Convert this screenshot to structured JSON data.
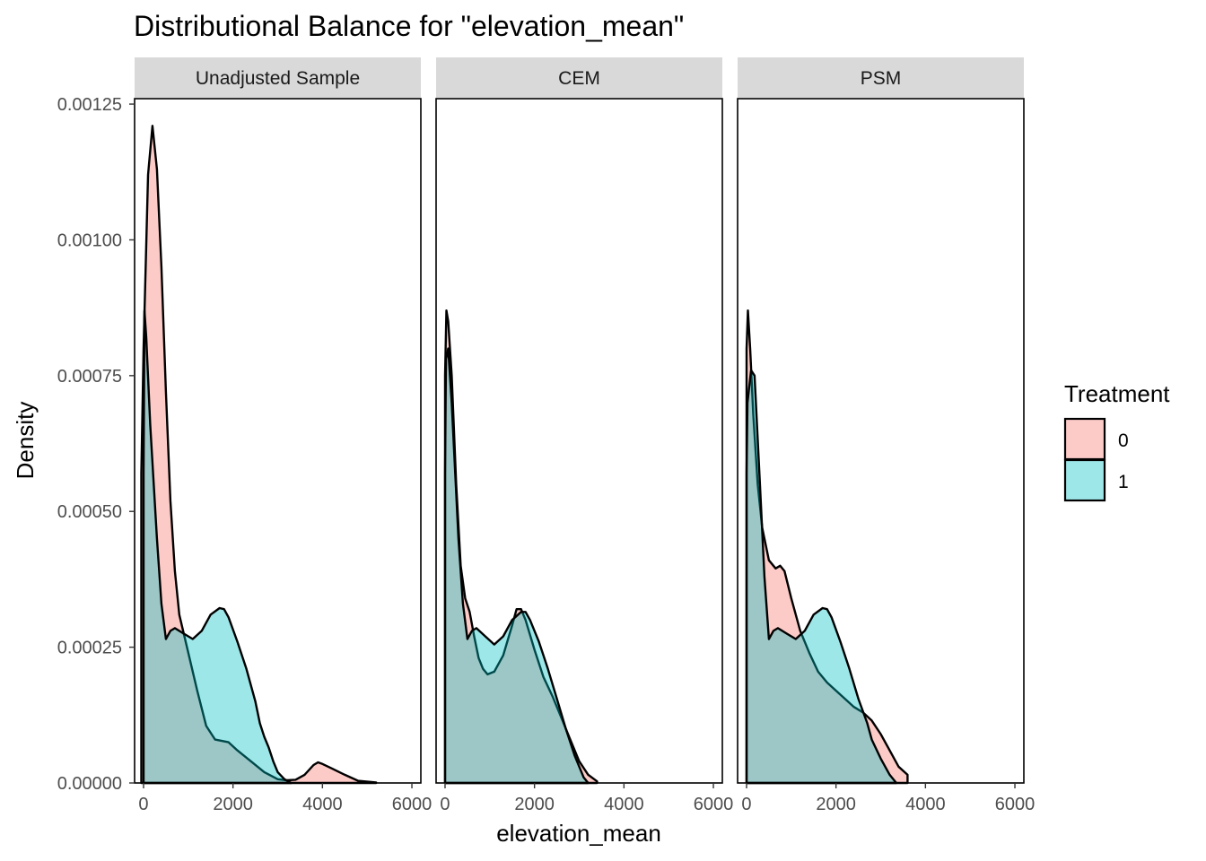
{
  "chart_data": {
    "type": "area",
    "title": "Distributional Balance for \"elevation_mean\"",
    "xlabel": "elevation_mean",
    "ylabel": "Density",
    "xlim": [
      -200,
      6200
    ],
    "ylim": [
      0,
      0.00126
    ],
    "x_ticks": [
      0,
      2000,
      4000,
      6000
    ],
    "x_tick_labels": [
      "0",
      "2000",
      "4000",
      "6000"
    ],
    "y_ticks": [
      0,
      0.00025,
      0.0005,
      0.00075,
      0.001,
      0.00125
    ],
    "y_tick_labels": [
      "0.00000",
      "0.00025",
      "0.00050",
      "0.00075",
      "0.00100",
      "0.00125"
    ],
    "grid": false,
    "legend": {
      "title": "Treatment",
      "position": "right",
      "entries": [
        {
          "label": "0",
          "color": "#F8766D"
        },
        {
          "label": "1",
          "color": "#00BFC4"
        }
      ]
    },
    "panels": [
      {
        "title": "Unadjusted Sample",
        "series": [
          {
            "name": "0",
            "color": "#F8766D",
            "points": [
              [
                -50,
                0
              ],
              [
                -50,
                0.00057
              ],
              [
                0,
                0.0008
              ],
              [
                100,
                0.00112
              ],
              [
                200,
                0.00121
              ],
              [
                300,
                0.00113
              ],
              [
                400,
                0.00095
              ],
              [
                500,
                0.00072
              ],
              [
                600,
                0.00052
              ],
              [
                700,
                0.00039
              ],
              [
                800,
                0.00031
              ],
              [
                1000,
                0.00024
              ],
              [
                1200,
                0.00017
              ],
              [
                1400,
                0.000105
              ],
              [
                1600,
                8e-05
              ],
              [
                1900,
                7.5e-05
              ],
              [
                2100,
                6e-05
              ],
              [
                2400,
                4e-05
              ],
              [
                2700,
                2e-05
              ],
              [
                3000,
                7e-06
              ],
              [
                3200,
                5e-06
              ],
              [
                3400,
                6e-06
              ],
              [
                3600,
                1.5e-05
              ],
              [
                3800,
                3.3e-05
              ],
              [
                3900,
                3.8e-05
              ],
              [
                4000,
                3.5e-05
              ],
              [
                4200,
                2.7e-05
              ],
              [
                4500,
                1.5e-05
              ],
              [
                4800,
                4e-06
              ],
              [
                5200,
                1e-06
              ],
              [
                5200,
                0
              ]
            ]
          },
          {
            "name": "1",
            "color": "#00BFC4",
            "points": [
              [
                0,
                0
              ],
              [
                0,
                0.00057
              ],
              [
                20,
                0.00087
              ],
              [
                60,
                0.00082
              ],
              [
                150,
                0.00066
              ],
              [
                300,
                0.00045
              ],
              [
                400,
                0.00033
              ],
              [
                500,
                0.000265
              ],
              [
                600,
                0.00028
              ],
              [
                700,
                0.000285
              ],
              [
                900,
                0.000275
              ],
              [
                1100,
                0.000265
              ],
              [
                1300,
                0.00028
              ],
              [
                1500,
                0.00031
              ],
              [
                1700,
                0.000322
              ],
              [
                1800,
                0.00032
              ],
              [
                1900,
                0.000305
              ],
              [
                2100,
                0.00026
              ],
              [
                2300,
                0.00021
              ],
              [
                2500,
                0.00015
              ],
              [
                2600,
                0.00011
              ],
              [
                2700,
                8.5e-05
              ],
              [
                2800,
                6.5e-05
              ],
              [
                2900,
                4e-05
              ],
              [
                3000,
                2e-05
              ],
              [
                3150,
                7e-06
              ],
              [
                3300,
                0
              ],
              [
                0,
                0
              ]
            ]
          }
        ]
      },
      {
        "title": "CEM",
        "series": [
          {
            "name": "0",
            "color": "#F8766D",
            "points": [
              [
                0,
                0
              ],
              [
                0,
                0.00075
              ],
              [
                30,
                0.00087
              ],
              [
                70,
                0.00085
              ],
              [
                150,
                0.00075
              ],
              [
                250,
                0.00055
              ],
              [
                350,
                0.0004
              ],
              [
                450,
                0.00034
              ],
              [
                550,
                0.000315
              ],
              [
                650,
                0.00027
              ],
              [
                750,
                0.00023
              ],
              [
                850,
                0.00021
              ],
              [
                950,
                0.0002
              ],
              [
                1100,
                0.000205
              ],
              [
                1300,
                0.000235
              ],
              [
                1500,
                0.00029
              ],
              [
                1600,
                0.00032
              ],
              [
                1700,
                0.00032
              ],
              [
                1800,
                0.0003
              ],
              [
                2000,
                0.000245
              ],
              [
                2200,
                0.000195
              ],
              [
                2400,
                0.00016
              ],
              [
                2600,
                0.00012
              ],
              [
                2800,
                8e-05
              ],
              [
                3000,
                4e-05
              ],
              [
                3200,
                1.5e-05
              ],
              [
                3400,
                3e-06
              ],
              [
                3400,
                0
              ]
            ]
          },
          {
            "name": "1",
            "color": "#00BFC4",
            "points": [
              [
                0,
                0
              ],
              [
                0,
                0.00057
              ],
              [
                20,
                0.00078
              ],
              [
                70,
                0.0008
              ],
              [
                150,
                0.0007
              ],
              [
                300,
                0.00045
              ],
              [
                400,
                0.00033
              ],
              [
                500,
                0.000265
              ],
              [
                600,
                0.00028
              ],
              [
                700,
                0.000285
              ],
              [
                900,
                0.00027
              ],
              [
                1100,
                0.000255
              ],
              [
                1300,
                0.00027
              ],
              [
                1500,
                0.0003
              ],
              [
                1700,
                0.000315
              ],
              [
                1800,
                0.000315
              ],
              [
                1900,
                0.0003
              ],
              [
                2100,
                0.00026
              ],
              [
                2300,
                0.00021
              ],
              [
                2500,
                0.000155
              ],
              [
                2700,
                0.0001
              ],
              [
                2900,
                5e-05
              ],
              [
                3000,
                3e-05
              ],
              [
                3100,
                1e-05
              ],
              [
                3200,
                0
              ],
              [
                0,
                0
              ]
            ]
          }
        ]
      },
      {
        "title": "PSM",
        "series": [
          {
            "name": "0",
            "color": "#F8766D",
            "points": [
              [
                0,
                0
              ],
              [
                0,
                0.0008
              ],
              [
                30,
                0.00087
              ],
              [
                80,
                0.0008
              ],
              [
                150,
                0.00068
              ],
              [
                250,
                0.00055
              ],
              [
                350,
                0.00047
              ],
              [
                500,
                0.00041
              ],
              [
                650,
                0.000395
              ],
              [
                750,
                0.0004
              ],
              [
                850,
                0.00039
              ],
              [
                1000,
                0.00034
              ],
              [
                1200,
                0.00028
              ],
              [
                1400,
                0.00024
              ],
              [
                1600,
                0.000205
              ],
              [
                1800,
                0.000185
              ],
              [
                2000,
                0.00017
              ],
              [
                2200,
                0.000155
              ],
              [
                2400,
                0.00014
              ],
              [
                2600,
                0.00013
              ],
              [
                2800,
                0.000115
              ],
              [
                3000,
                9e-05
              ],
              [
                3200,
                6e-05
              ],
              [
                3400,
                3e-05
              ],
              [
                3600,
                1.5e-05
              ],
              [
                3600,
                0
              ]
            ]
          },
          {
            "name": "1",
            "color": "#00BFC4",
            "points": [
              [
                0,
                0
              ],
              [
                0,
                0.00057
              ],
              [
                20,
                0.0007
              ],
              [
                100,
                0.00076
              ],
              [
                180,
                0.00075
              ],
              [
                300,
                0.00055
              ],
              [
                400,
                0.00038
              ],
              [
                500,
                0.000265
              ],
              [
                600,
                0.00028
              ],
              [
                700,
                0.000285
              ],
              [
                900,
                0.000275
              ],
              [
                1100,
                0.000265
              ],
              [
                1300,
                0.00028
              ],
              [
                1500,
                0.00031
              ],
              [
                1700,
                0.000322
              ],
              [
                1800,
                0.00032
              ],
              [
                1900,
                0.000305
              ],
              [
                2100,
                0.00026
              ],
              [
                2300,
                0.00021
              ],
              [
                2500,
                0.000155
              ],
              [
                2700,
                0.00011
              ],
              [
                2800,
                8e-05
              ],
              [
                3000,
                4.5e-05
              ],
              [
                3200,
                1.5e-05
              ],
              [
                3350,
                0
              ],
              [
                0,
                0
              ]
            ]
          }
        ]
      }
    ]
  }
}
